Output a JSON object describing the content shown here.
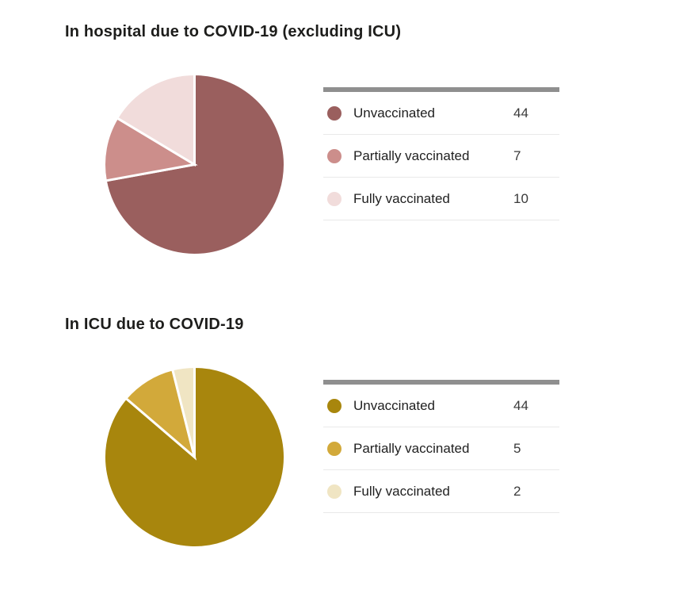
{
  "chart_data": [
    {
      "type": "pie",
      "title": "In hospital due to COVID-19 (excluding ICU)",
      "categories": [
        "Unvaccinated",
        "Partially vaccinated",
        "Fully vaccinated"
      ],
      "values": [
        44,
        7,
        10
      ],
      "colors": [
        "#9a5f5e",
        "#cc8e8b",
        "#f1dcdb"
      ],
      "legend_position": "right",
      "start_angle_deg": 0,
      "direction": "clockwise"
    },
    {
      "type": "pie",
      "title": "In ICU due to COVID-19",
      "categories": [
        "Unvaccinated",
        "Partially vaccinated",
        "Fully vaccinated"
      ],
      "values": [
        44,
        5,
        2
      ],
      "colors": [
        "#a8860d",
        "#d2a93a",
        "#f0e5c3"
      ],
      "legend_position": "right",
      "start_angle_deg": 0,
      "direction": "clockwise"
    }
  ],
  "styles": {
    "legend_bar_color": "#8f8f8f",
    "legend_separator_color": "#e9e9e9",
    "title_color": "#1d1d1b",
    "slice_gap_color": "#ffffff",
    "background_color": "#ffffff"
  }
}
